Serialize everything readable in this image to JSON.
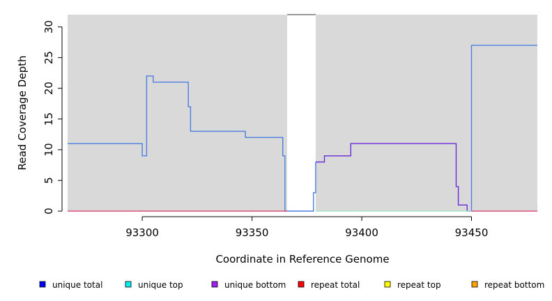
{
  "chart_data": {
    "type": "line",
    "xlabel": "Coordinate in Reference Genome",
    "ylabel": "Read Coverage Depth",
    "xlim": [
      93266,
      93480
    ],
    "ylim": [
      0,
      32
    ],
    "x_ticks": [
      93300,
      93350,
      93400,
      93450
    ],
    "y_ticks": [
      0,
      5,
      10,
      15,
      20,
      25,
      30
    ],
    "grid": false,
    "background": "#d9d9d9",
    "unshaded_regions": [
      [
        93366,
        93379
      ]
    ],
    "legend_position": "bottom",
    "legend": [
      {
        "name": "unique total",
        "color": "#0000ff"
      },
      {
        "name": "unique top",
        "color": "#00eeee"
      },
      {
        "name": "unique bottom",
        "color": "#a020f0"
      },
      {
        "name": "repeat total",
        "color": "#ff0000"
      },
      {
        "name": "repeat top",
        "color": "#ffff00"
      },
      {
        "name": "repeat bottom",
        "color": "#ffa500"
      }
    ],
    "series": [
      {
        "name": "unique total",
        "color": "#4a7fe0",
        "points": [
          [
            93266,
            11
          ],
          [
            93300,
            11
          ],
          [
            93300,
            9
          ],
          [
            93302,
            9
          ],
          [
            93302,
            22
          ],
          [
            93305,
            22
          ],
          [
            93305,
            21
          ],
          [
            93321,
            21
          ],
          [
            93321,
            17
          ],
          [
            93322,
            17
          ],
          [
            93322,
            13
          ],
          [
            93347,
            13
          ],
          [
            93347,
            12
          ],
          [
            93364,
            12
          ],
          [
            93364,
            9
          ],
          [
            93365,
            9
          ],
          [
            93365,
            0
          ],
          [
            93378,
            0
          ],
          [
            93378,
            3
          ],
          [
            93379,
            3
          ],
          [
            93379,
            8
          ]
        ]
      },
      {
        "name": "unique bottom",
        "color": "#6a2bd8",
        "points": [
          [
            93379,
            8
          ],
          [
            93383,
            8
          ],
          [
            93383,
            9
          ],
          [
            93395,
            9
          ],
          [
            93395,
            11
          ],
          [
            93443,
            11
          ],
          [
            93443,
            4
          ],
          [
            93444,
            4
          ],
          [
            93444,
            1
          ],
          [
            93448,
            1
          ],
          [
            93448,
            0
          ],
          [
            93450,
            0
          ]
        ]
      },
      {
        "name": "unique total",
        "color": "#4a7fe0",
        "points": [
          [
            93450,
            0
          ],
          [
            93450,
            27
          ],
          [
            93480,
            27
          ]
        ]
      },
      {
        "name": "repeat total",
        "color": "#e0507a",
        "points": [
          [
            93266,
            0
          ],
          [
            93366,
            0
          ]
        ]
      },
      {
        "name": "unique top",
        "color": "#a8e6c8",
        "points": [
          [
            93379,
            0
          ],
          [
            93450,
            0
          ]
        ]
      },
      {
        "name": "repeat total",
        "color": "#e0507a",
        "points": [
          [
            93450,
            0
          ],
          [
            93480,
            0
          ]
        ]
      }
    ]
  }
}
